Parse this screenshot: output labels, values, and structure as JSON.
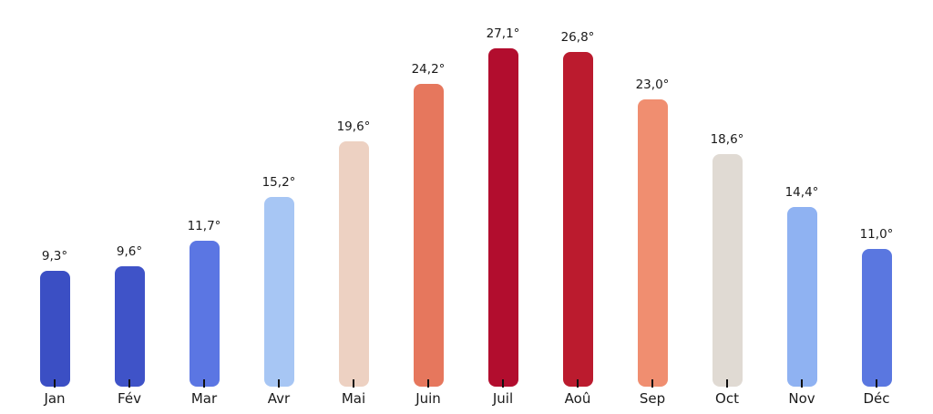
{
  "chart_data": {
    "type": "bar",
    "title": "",
    "xlabel": "",
    "ylabel": "",
    "categories": [
      "Jan",
      "Fév",
      "Mar",
      "Avr",
      "Mai",
      "Juin",
      "Juil",
      "Aoû",
      "Sep",
      "Oct",
      "Nov",
      "Déc"
    ],
    "values": [
      9.3,
      9.6,
      11.7,
      15.2,
      19.6,
      24.2,
      27.1,
      26.8,
      23.0,
      18.6,
      14.4,
      11.0
    ],
    "value_labels": [
      "9,3°",
      "9,6°",
      "11,7°",
      "15,2°",
      "19,6°",
      "24,2°",
      "27,1°",
      "26,8°",
      "23,0°",
      "18,6°",
      "14,4°",
      "11,0°"
    ],
    "unit": "°",
    "decimal_separator": ",",
    "bar_colors": [
      "#3b4fc4",
      "#3f53c8",
      "#5b76e3",
      "#a7c6f4",
      "#edd1c2",
      "#e6775d",
      "#b20d2e",
      "#bb1b2e",
      "#f08e70",
      "#e0dad3",
      "#8fb2f2",
      "#5a77e0"
    ],
    "colormap_style": "coolwarm (blue = cold, red = hot)",
    "ylim": [
      0,
      31
    ],
    "grid": false,
    "legend": null,
    "axes_visible": false,
    "tick_color": "#111111",
    "text_color": "#1a1a1a",
    "background_color": "#ffffff"
  }
}
